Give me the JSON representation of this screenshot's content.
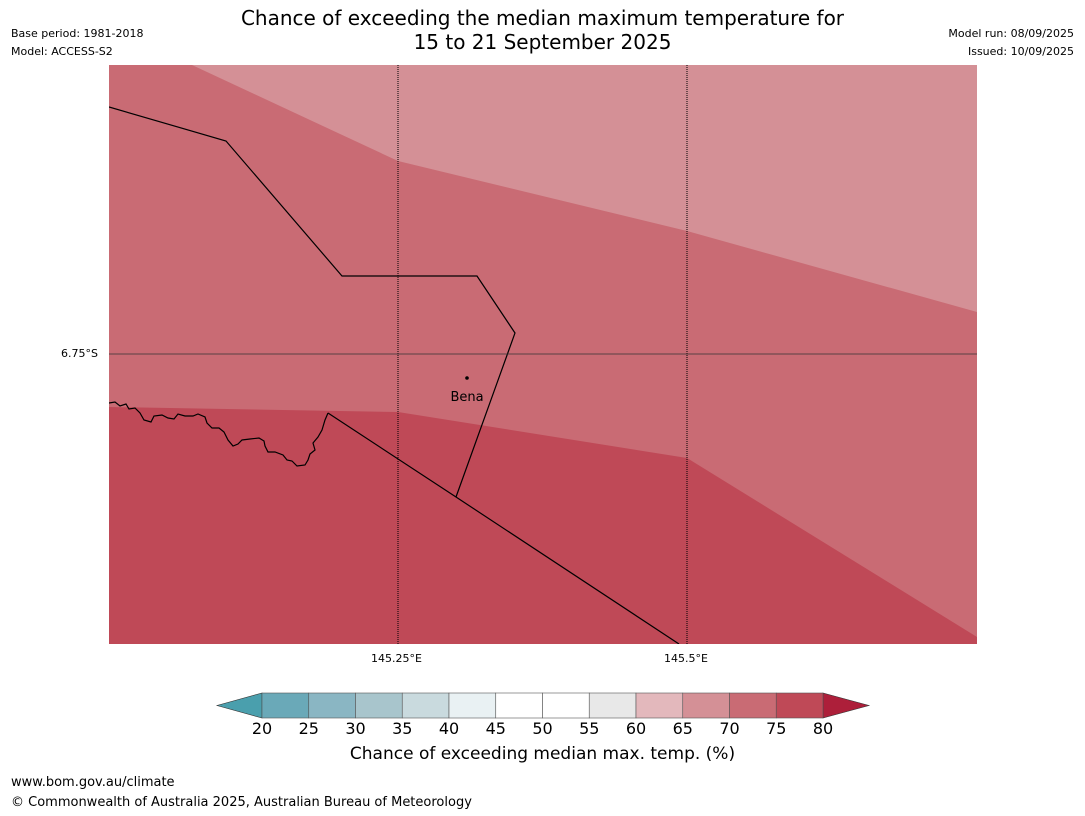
{
  "header": {
    "title_line1": "Chance of exceeding the median maximum temperature for",
    "title_line2": "15 to 21 September 2025",
    "base_period": "Base period: 1981-2018",
    "model": "Model: ACCESS-S2",
    "model_run": "Model run: 08/09/2025",
    "issued": "Issued: 10/09/2025"
  },
  "map": {
    "lat_label": "6.75°S",
    "lon_labels": [
      "145.25°E",
      "145.5°E"
    ],
    "place_label": "Bena",
    "colors": {
      "band_60_65": "#d49096",
      "band_65_70": "#c96b74",
      "band_70_75": "#bf4957"
    }
  },
  "colorbar": {
    "ticks": [
      "20",
      "25",
      "30",
      "35",
      "40",
      "45",
      "50",
      "55",
      "60",
      "65",
      "70",
      "75",
      "80"
    ],
    "under_color": "#4a9fad",
    "over_color": "#ad1f3a",
    "colors": [
      "#6aa9b8",
      "#8ab6c3",
      "#a8c5cc",
      "#c9dade",
      "#e9f1f3",
      "#ffffff",
      "#ffffff",
      "#e8e8e8",
      "#e3b8bc",
      "#d49096",
      "#c96b74",
      "#bf4957"
    ],
    "label": "Chance of exceeding median max. temp. (%)"
  },
  "footer": {
    "url": "www.bom.gov.au/climate",
    "copyright": "© Commonwealth of Australia 2025, Australian Bureau of Meteorology"
  }
}
